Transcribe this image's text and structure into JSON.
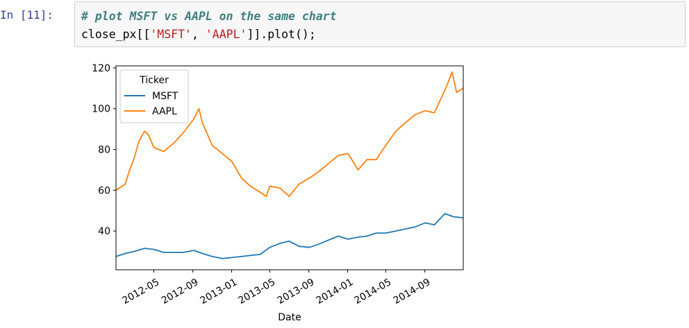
{
  "cell": {
    "prompt": "In [11]:",
    "code_comment": "# plot MSFT vs AAPL on the same chart",
    "code_line2": {
      "prefix": "close_px[[",
      "str1": "'MSFT'",
      "sep": ", ",
      "str2": "'AAPL'",
      "suffix": "]].plot();"
    }
  },
  "colors": {
    "prompt": "#303f9f",
    "comment": "#408080",
    "string": "#ba2121",
    "msft": "#1f77b4",
    "aapl": "#ff7f0e"
  },
  "chart_data": {
    "type": "line",
    "xlabel": "Date",
    "ylabel": "",
    "legend_title": "Ticker",
    "legend_location": "upper-left",
    "grid": false,
    "xlim": [
      "2012-01-03",
      "2014-12-31"
    ],
    "ylim": [
      21,
      121
    ],
    "yticks": [
      40,
      60,
      80,
      100,
      120
    ],
    "xticks": [
      "2012-05",
      "2012-09",
      "2013-01",
      "2013-05",
      "2013-09",
      "2014-01",
      "2014-05",
      "2014-09"
    ],
    "series": [
      {
        "name": "MSFT",
        "color": "#1f77b4",
        "x": [
          "2012-01-03",
          "2012-02-01",
          "2012-03-01",
          "2012-04-02",
          "2012-05-01",
          "2012-06-01",
          "2012-07-02",
          "2012-08-01",
          "2012-09-04",
          "2012-10-01",
          "2012-11-01",
          "2012-12-03",
          "2013-01-02",
          "2013-02-01",
          "2013-03-01",
          "2013-04-01",
          "2013-05-01",
          "2013-06-03",
          "2013-07-01",
          "2013-08-01",
          "2013-09-03",
          "2013-10-01",
          "2013-11-01",
          "2013-12-02",
          "2014-01-02",
          "2014-02-03",
          "2014-03-03",
          "2014-04-01",
          "2014-05-01",
          "2014-06-02",
          "2014-07-01",
          "2014-08-01",
          "2014-09-02",
          "2014-10-01",
          "2014-11-03",
          "2014-12-01",
          "2014-12-31"
        ],
        "values": [
          27.5,
          29.0,
          30.0,
          31.5,
          31.0,
          29.5,
          29.5,
          29.5,
          30.5,
          29.0,
          27.5,
          26.5,
          27.0,
          27.5,
          28.0,
          28.5,
          32.0,
          34.0,
          35.0,
          32.5,
          32.0,
          33.5,
          35.5,
          37.5,
          36.0,
          37.0,
          37.5,
          39.0,
          39.0,
          40.0,
          41.0,
          42.0,
          44.0,
          43.0,
          48.5,
          47.0,
          46.5
        ]
      },
      {
        "name": "AAPL",
        "color": "#ff7f0e",
        "x": [
          "2012-01-03",
          "2012-02-01",
          "2012-02-15",
          "2012-03-01",
          "2012-03-15",
          "2012-04-02",
          "2012-04-15",
          "2012-05-01",
          "2012-06-01",
          "2012-07-02",
          "2012-08-01",
          "2012-09-04",
          "2012-09-20",
          "2012-10-01",
          "2012-11-01",
          "2012-12-03",
          "2013-01-02",
          "2013-02-01",
          "2013-03-01",
          "2013-04-01",
          "2013-04-20",
          "2013-05-01",
          "2013-06-03",
          "2013-07-01",
          "2013-08-01",
          "2013-09-03",
          "2013-10-01",
          "2013-11-01",
          "2013-12-02",
          "2014-01-02",
          "2014-02-03",
          "2014-03-03",
          "2014-04-01",
          "2014-05-01",
          "2014-06-02",
          "2014-07-01",
          "2014-08-01",
          "2014-09-02",
          "2014-10-01",
          "2014-11-03",
          "2014-11-26",
          "2014-12-10",
          "2014-12-31"
        ],
        "values": [
          60.0,
          63.0,
          70.0,
          76.0,
          84.0,
          89.0,
          87.0,
          81.0,
          79.0,
          83.0,
          88.0,
          95.0,
          100.0,
          93.0,
          82.0,
          78.0,
          74.0,
          66.0,
          62.0,
          59.0,
          57.0,
          62.0,
          61.0,
          57.0,
          63.0,
          66.0,
          69.0,
          73.0,
          77.0,
          78.0,
          70.0,
          75.0,
          75.0,
          82.0,
          89.0,
          93.0,
          97.0,
          99.0,
          98.0,
          109.0,
          118.0,
          108.0,
          110.0
        ]
      }
    ]
  }
}
